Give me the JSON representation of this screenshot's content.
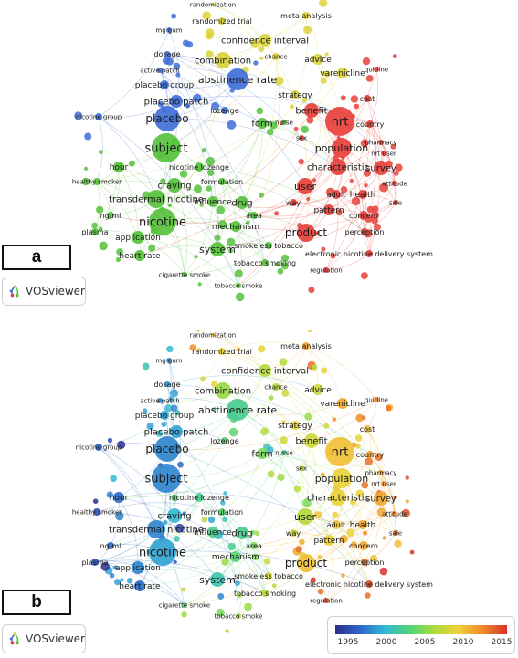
{
  "panels": {
    "a": {
      "label": "a"
    },
    "b": {
      "label": "b"
    }
  },
  "logo": {
    "text": "VOSviewer"
  },
  "color_bar": {
    "ticks": [
      "1995",
      "2000",
      "2005",
      "2010",
      "2015"
    ],
    "colors": [
      "#2b2f8f",
      "#2e66c8",
      "#33b7d8",
      "#4fd17b",
      "#a6dc3c",
      "#f0d23a",
      "#f08a2a",
      "#d8322a"
    ]
  },
  "clusters": {
    "red": "#e8413a",
    "green": "#56c23c",
    "blue": "#3f6fd8",
    "yellow": "#d9d43a"
  },
  "terms": [
    {
      "label": "randomization",
      "cluster": "yellow",
      "year": 2010
    },
    {
      "label": "randomized trial",
      "cluster": "yellow",
      "year": 2009
    },
    {
      "label": "meta analysis",
      "cluster": "yellow",
      "year": 2011
    },
    {
      "label": "mg gum",
      "cluster": "blue",
      "year": 1999
    },
    {
      "label": "confidence interval",
      "cluster": "yellow",
      "year": 2007
    },
    {
      "label": "dosage",
      "cluster": "blue",
      "year": 2000
    },
    {
      "label": "combination",
      "cluster": "yellow",
      "year": 2006
    },
    {
      "label": "chance",
      "cluster": "yellow",
      "year": 2007
    },
    {
      "label": "advice",
      "cluster": "yellow",
      "year": 2008
    },
    {
      "label": "active patch",
      "cluster": "blue",
      "year": 1999
    },
    {
      "label": "varenicline",
      "cluster": "yellow",
      "year": 2011
    },
    {
      "label": "quitline",
      "cluster": "red",
      "year": 2012
    },
    {
      "label": "abstinence rate",
      "cluster": "blue",
      "year": 2003
    },
    {
      "label": "placebo group",
      "cluster": "blue",
      "year": 2000
    },
    {
      "label": "cost",
      "cluster": "red",
      "year": 2010
    },
    {
      "label": "placebo patch",
      "cluster": "blue",
      "year": 2000
    },
    {
      "label": "strategy",
      "cluster": "yellow",
      "year": 2009
    },
    {
      "label": "benefit",
      "cluster": "red",
      "year": 2008
    },
    {
      "label": "nrt",
      "cluster": "red",
      "year": 2010
    },
    {
      "label": "lozenge",
      "cluster": "blue",
      "year": 2004
    },
    {
      "label": "country",
      "cluster": "red",
      "year": 2011
    },
    {
      "label": "nicotine group",
      "cluster": "blue",
      "year": 1998
    },
    {
      "label": "placebo",
      "cluster": "blue",
      "year": 1999
    },
    {
      "label": "form",
      "cluster": "green",
      "year": 2005
    },
    {
      "label": "nurse",
      "cluster": "green",
      "year": 2003
    },
    {
      "label": "sex",
      "cluster": "red",
      "year": 2007
    },
    {
      "label": "pharmacy",
      "cluster": "red",
      "year": 2011
    },
    {
      "label": "population",
      "cluster": "red",
      "year": 2009
    },
    {
      "label": "nrt user",
      "cluster": "red",
      "year": 2012
    },
    {
      "label": "subject",
      "cluster": "green",
      "year": 1999
    },
    {
      "label": "survey",
      "cluster": "red",
      "year": 2011
    },
    {
      "label": "characteristic",
      "cluster": "red",
      "year": 2009
    },
    {
      "label": "hour",
      "cluster": "green",
      "year": 1998
    },
    {
      "label": "nicotine lozenge",
      "cluster": "green",
      "year": 2003
    },
    {
      "label": "attitude",
      "cluster": "red",
      "year": 2012
    },
    {
      "label": "healthy smoker",
      "cluster": "green",
      "year": 1997
    },
    {
      "label": "craving",
      "cluster": "green",
      "year": 2001
    },
    {
      "label": "formulation",
      "cluster": "green",
      "year": 2004
    },
    {
      "label": "user",
      "cluster": "red",
      "year": 2007
    },
    {
      "label": "adult",
      "cluster": "red",
      "year": 2010
    },
    {
      "label": "health",
      "cluster": "red",
      "year": 2011
    },
    {
      "label": "transdermal nicotine",
      "cluster": "green",
      "year": 1999
    },
    {
      "label": "way",
      "cluster": "red",
      "year": 2008
    },
    {
      "label": "sale",
      "cluster": "red",
      "year": 2013
    },
    {
      "label": "influence",
      "cluster": "green",
      "year": 2003
    },
    {
      "label": "drug",
      "cluster": "green",
      "year": 2003
    },
    {
      "label": "ng.ml",
      "cluster": "green",
      "year": 1998
    },
    {
      "label": "pattern",
      "cluster": "red",
      "year": 2009
    },
    {
      "label": "concern",
      "cluster": "red",
      "year": 2011
    },
    {
      "label": "area",
      "cluster": "green",
      "year": 2005
    },
    {
      "label": "nicotine",
      "cluster": "green",
      "year": 2000
    },
    {
      "label": "mechanism",
      "cluster": "green",
      "year": 2004
    },
    {
      "label": "plasma",
      "cluster": "green",
      "year": 1997
    },
    {
      "label": "application",
      "cluster": "green",
      "year": 1999
    },
    {
      "label": "product",
      "cluster": "red",
      "year": 2010
    },
    {
      "label": "perception",
      "cluster": "red",
      "year": 2013
    },
    {
      "label": "heart rate",
      "cluster": "green",
      "year": 1998
    },
    {
      "label": "system",
      "cluster": "green",
      "year": 2002
    },
    {
      "label": "smokeless tobacco",
      "cluster": "green",
      "year": 2008
    },
    {
      "label": "electronic nicotine delivery system",
      "cluster": "red",
      "year": 2014
    },
    {
      "label": "tobacco smoking",
      "cluster": "green",
      "year": 2007
    },
    {
      "label": "regulation",
      "cluster": "red",
      "year": 2014
    },
    {
      "label": "cigarette smoke",
      "cluster": "green",
      "year": 2004
    },
    {
      "label": "tobacco smoke",
      "cluster": "green",
      "year": 2006
    }
  ]
}
